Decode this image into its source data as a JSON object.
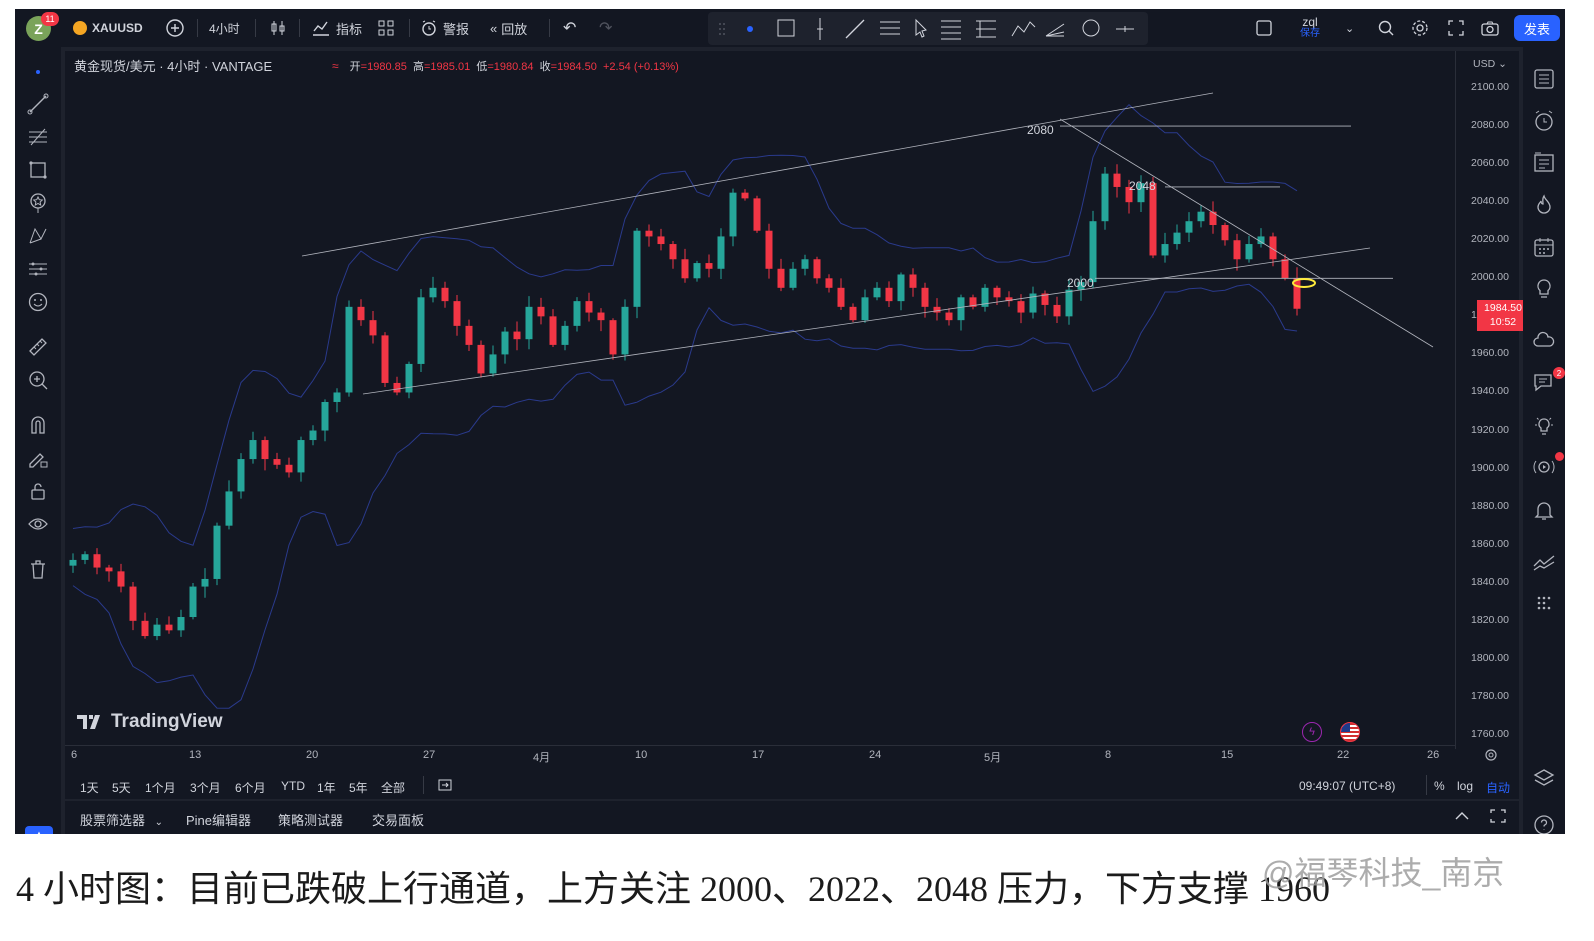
{
  "topbar": {
    "avatar_letter": "Z",
    "notification_count": "11",
    "symbol": "XAUUSD",
    "interval": "4小时",
    "indicators_label": "指标",
    "alerts_label": "警报",
    "replay_label": "回放",
    "layout_name": "zql",
    "layout_status": "保存",
    "publish_label": "发表"
  },
  "legend": {
    "title": "黄金现货/美元 · 4小时 · VANTAGE",
    "open_label": "开",
    "open": "1980.85",
    "high_label": "高",
    "high": "1985.01",
    "low_label": "低",
    "low": "1980.84",
    "close_label": "收",
    "close": "1984.50",
    "change": "+2.54 (+0.13%)"
  },
  "price_axis": {
    "currency": "USD",
    "ticks": [
      "2100.00",
      "2080.00",
      "2060.00",
      "2040.00",
      "2020.00",
      "2000.00",
      "1980.00",
      "1960.00",
      "1940.00",
      "1920.00",
      "1900.00",
      "1880.00",
      "1860.00",
      "1840.00",
      "1820.00",
      "1800.00",
      "1780.00",
      "1760.00"
    ],
    "last_price": "1984.50",
    "countdown": "10:52"
  },
  "time_axis": {
    "ticks": [
      "6",
      "13",
      "20",
      "27",
      "4月",
      "10",
      "17",
      "24",
      "5月",
      "8",
      "15",
      "22",
      "26"
    ]
  },
  "annotations": [
    "2080",
    "2048",
    "2000"
  ],
  "branding": "TradingView",
  "range_bar": {
    "ranges": [
      "1天",
      "5天",
      "1个月",
      "3个月",
      "6个月",
      "YTD",
      "1年",
      "5年",
      "全部"
    ],
    "clock": "09:49:07 (UTC+8)",
    "percent_label": "%",
    "log_label": "log",
    "auto_label": "自动"
  },
  "bottom_panel": {
    "tabs": [
      "股票筛选器",
      "Pine编辑器",
      "策略测试器",
      "交易面板"
    ]
  },
  "right_badges": {
    "chat_count": "2"
  },
  "caption": "4 小时图：目前已跌破上行通道，上方关注 2000、2022、2048 压力，下方支撑 1960",
  "watermark": "@福琴科技_南京",
  "colors": {
    "up": "#26a69a",
    "down": "#f23645",
    "accent": "#2962ff",
    "band": "#2a3a8c",
    "background": "#131722"
  },
  "chart_data": {
    "type": "candlestick",
    "title": "黄金现货/美元 · 4小时 · VANTAGE",
    "ylim": [
      1750,
      2105
    ],
    "x_ticks": [
      "6",
      "13",
      "20",
      "27",
      "4月",
      "10",
      "17",
      "24",
      "5月",
      "8",
      "15",
      "22",
      "26"
    ],
    "closes": [
      1852,
      1855,
      1848,
      1846,
      1838,
      1820,
      1812,
      1818,
      1815,
      1822,
      1838,
      1842,
      1870,
      1888,
      1905,
      1915,
      1905,
      1902,
      1898,
      1915,
      1920,
      1935,
      1940,
      1985,
      1978,
      1970,
      1945,
      1940,
      1955,
      1990,
      1995,
      1988,
      1975,
      1965,
      1950,
      1960,
      1972,
      1968,
      1985,
      1980,
      1965,
      1975,
      1988,
      1982,
      1978,
      1960,
      1985,
      2025,
      2022,
      2018,
      2010,
      2000,
      2008,
      2005,
      2022,
      2045,
      2042,
      2025,
      2005,
      1995,
      2005,
      2010,
      2000,
      1995,
      1985,
      1978,
      1990,
      1995,
      1988,
      2002,
      1995,
      1985,
      1982,
      1978,
      1990,
      1985,
      1995,
      1990,
      1988,
      1982,
      1992,
      1986,
      1980,
      1994,
      1998,
      2030,
      2055,
      2048,
      2040,
      2050,
      2012,
      2018,
      2024,
      2030,
      2035,
      2028,
      2020,
      2010,
      2018,
      2022,
      2010,
      2000,
      1984
    ],
    "levels": [
      2080,
      2048,
      2000
    ],
    "bollinger_bands": true,
    "price_axis_ticks": [
      2100,
      2080,
      2060,
      2040,
      2020,
      2000,
      1980,
      1960,
      1940,
      1920,
      1900,
      1880,
      1860,
      1840,
      1820,
      1800,
      1780,
      1760
    ]
  }
}
